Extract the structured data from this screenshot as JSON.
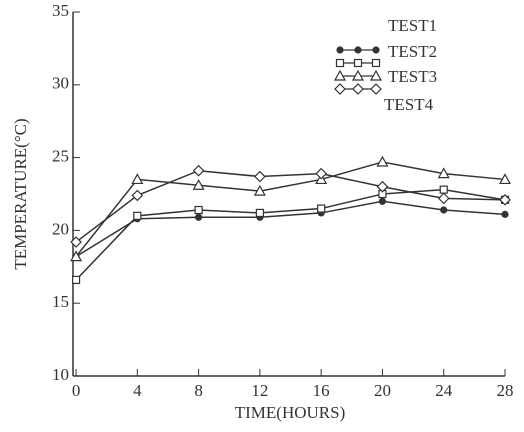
{
  "chart_data": {
    "type": "line",
    "x": [
      0,
      4,
      8,
      12,
      16,
      20,
      24,
      28
    ],
    "series": [
      {
        "name": "TEST1",
        "color": "#333333",
        "marker": "circle-filled",
        "values": [
          18.2,
          20.8,
          20.9,
          20.9,
          21.2,
          22.0,
          21.4,
          21.1
        ]
      },
      {
        "name": "TEST2",
        "color": "#333333",
        "marker": "square",
        "values": [
          16.6,
          21.0,
          21.4,
          21.2,
          21.5,
          22.5,
          22.8,
          22.1
        ]
      },
      {
        "name": "TEST3",
        "color": "#333333",
        "marker": "triangle",
        "values": [
          18.2,
          23.5,
          23.1,
          22.7,
          23.5,
          24.7,
          23.9,
          23.5
        ]
      },
      {
        "name": "TEST4",
        "color": "#333333",
        "marker": "diamond",
        "values": [
          19.2,
          22.4,
          24.1,
          23.7,
          23.9,
          23.0,
          22.2,
          22.1
        ]
      }
    ],
    "xlabel": "TIME(HOURS)",
    "ylabel": "TEMPERATURE(°C)",
    "xlim": [
      -0.2,
      28
    ],
    "xticks": [
      0,
      4,
      8,
      12,
      16,
      20,
      24,
      28
    ],
    "ylim": [
      10,
      35
    ],
    "yticks": [
      10,
      15,
      20,
      25,
      30,
      35
    ]
  }
}
